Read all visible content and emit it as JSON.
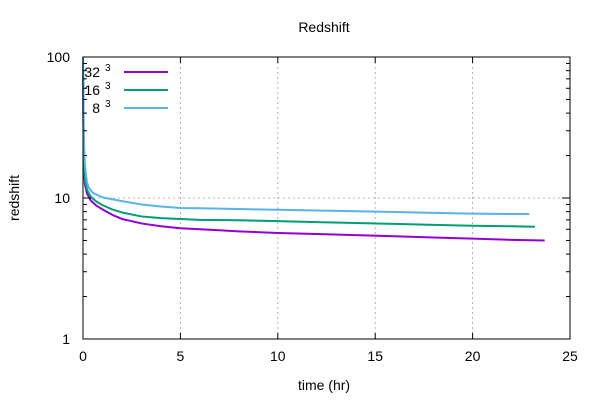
{
  "chart_data": {
    "type": "line",
    "title": "Redshift",
    "xlabel": "time (hr)",
    "ylabel": "redshift",
    "xlim": [
      0,
      25
    ],
    "ylim": [
      1,
      100
    ],
    "yscale": "log",
    "grid": true,
    "legend_position": "top-left",
    "x_ticks": [
      {
        "value": 0,
        "label": "0"
      },
      {
        "value": 5,
        "label": "5"
      },
      {
        "value": 10,
        "label": "10"
      },
      {
        "value": 15,
        "label": "15"
      },
      {
        "value": 20,
        "label": "20"
      },
      {
        "value": 25,
        "label": "25"
      }
    ],
    "y_ticks": [
      {
        "value": 1,
        "label": "1"
      },
      {
        "value": 10,
        "label": "10"
      },
      {
        "value": 100,
        "label": "100"
      }
    ],
    "series": [
      {
        "base": "32",
        "sup": "3",
        "color": "#9400d3",
        "points": [
          [
            0,
            100
          ],
          [
            0.02,
            35
          ],
          [
            0.05,
            16
          ],
          [
            0.1,
            12.5
          ],
          [
            0.2,
            10.8
          ],
          [
            0.4,
            9.6
          ],
          [
            0.7,
            8.8
          ],
          [
            1,
            8.3
          ],
          [
            1.5,
            7.6
          ],
          [
            2,
            7.1
          ],
          [
            3,
            6.6
          ],
          [
            4,
            6.3
          ],
          [
            5,
            6.1
          ],
          [
            6,
            6.0
          ],
          [
            7,
            5.9
          ],
          [
            8,
            5.8
          ],
          [
            10,
            5.65
          ],
          [
            12,
            5.55
          ],
          [
            14,
            5.45
          ],
          [
            16,
            5.35
          ],
          [
            18,
            5.25
          ],
          [
            20,
            5.15
          ],
          [
            22,
            5.05
          ],
          [
            23.7,
            5.0
          ]
        ]
      },
      {
        "base": "16",
        "sup": "3",
        "color": "#009e73",
        "points": [
          [
            0,
            100
          ],
          [
            0.02,
            40
          ],
          [
            0.05,
            18
          ],
          [
            0.1,
            13.5
          ],
          [
            0.2,
            11.5
          ],
          [
            0.4,
            10.2
          ],
          [
            0.7,
            9.4
          ],
          [
            1,
            8.9
          ],
          [
            1.5,
            8.3
          ],
          [
            2,
            7.9
          ],
          [
            3,
            7.4
          ],
          [
            4,
            7.2
          ],
          [
            5,
            7.1
          ],
          [
            6,
            7.0
          ],
          [
            8,
            6.95
          ],
          [
            10,
            6.85
          ],
          [
            12,
            6.75
          ],
          [
            14,
            6.65
          ],
          [
            16,
            6.55
          ],
          [
            18,
            6.45
          ],
          [
            20,
            6.35
          ],
          [
            22,
            6.3
          ],
          [
            23.2,
            6.25
          ]
        ]
      },
      {
        "base": "8",
        "sup": "3",
        "color": "#56b4e9",
        "points": [
          [
            0,
            100
          ],
          [
            0.02,
            50
          ],
          [
            0.05,
            25
          ],
          [
            0.1,
            17
          ],
          [
            0.2,
            13
          ],
          [
            0.3,
            11.8
          ],
          [
            0.5,
            10.9
          ],
          [
            0.8,
            10.4
          ],
          [
            1,
            10.1
          ],
          [
            2,
            9.5
          ],
          [
            3,
            9.0
          ],
          [
            4,
            8.7
          ],
          [
            5,
            8.5
          ],
          [
            6,
            8.45
          ],
          [
            8,
            8.35
          ],
          [
            10,
            8.25
          ],
          [
            12,
            8.15
          ],
          [
            14,
            8.05
          ],
          [
            16,
            7.95
          ],
          [
            18,
            7.85
          ],
          [
            20,
            7.75
          ],
          [
            22,
            7.7
          ],
          [
            22.9,
            7.7
          ]
        ]
      }
    ]
  }
}
